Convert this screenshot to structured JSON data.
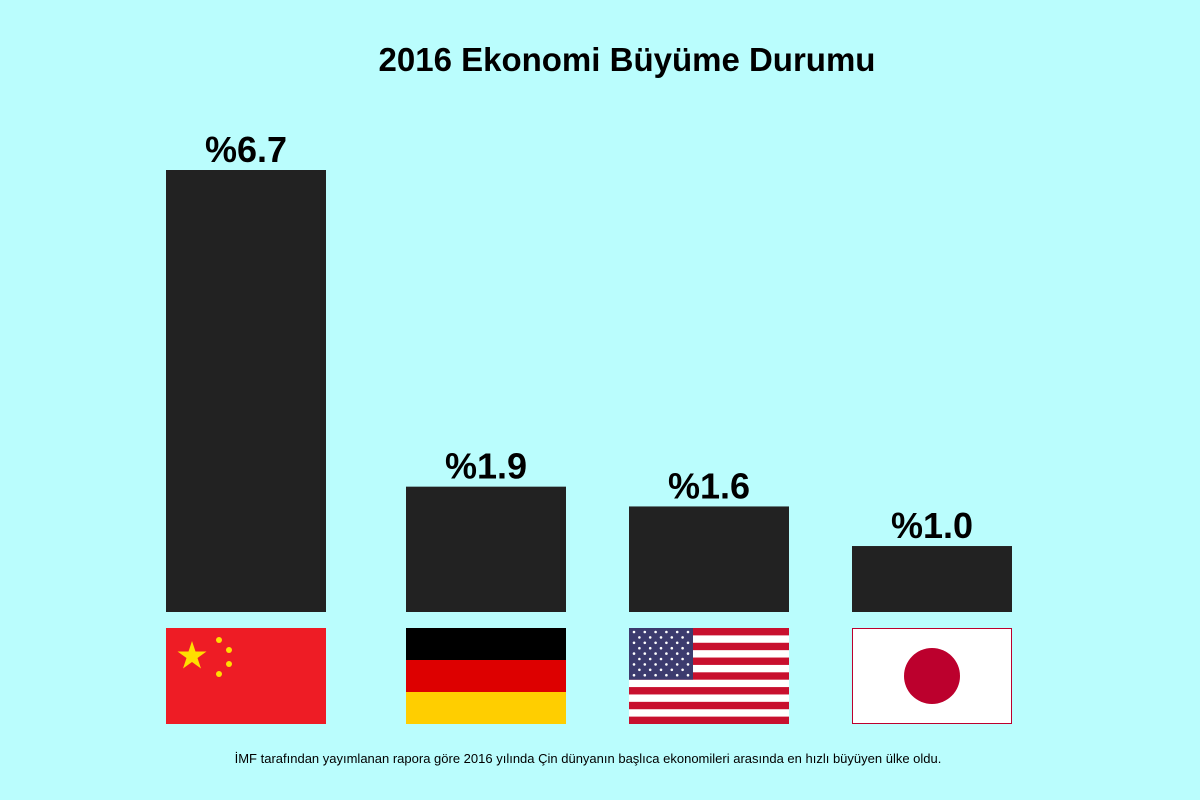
{
  "chart_data": {
    "type": "bar",
    "title": "2016 Ekonomi Büyüme Durumu",
    "categories": [
      null,
      null,
      null,
      null
    ],
    "values": [
      6.7,
      1.9,
      1.6,
      1.0
    ],
    "value_labels": [
      "%6.7",
      "%1.9",
      "%1.6",
      "%1.0"
    ],
    "color": "#222222",
    "note": "İMF tarafından yayımlanan rapora göre 2016 yılında Çin dünyanın başlıca ekonomileri arasında en hızlı büyüyen ülke oldu."
  }
}
